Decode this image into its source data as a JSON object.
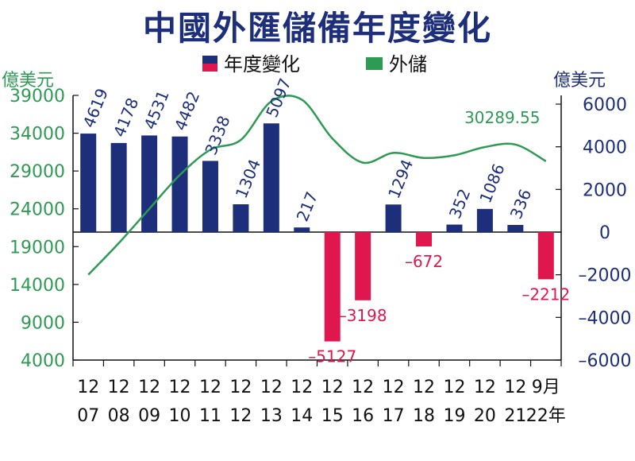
{
  "title": "中國外匯儲備年度變化",
  "chart_data": {
    "type": "bar+line",
    "title": "中國外匯儲備年度變化",
    "legend": [
      "年度變化",
      "外儲"
    ],
    "left_axis": {
      "unit": "億美元",
      "ticks": [
        "39000",
        "34000",
        "29000",
        "24000",
        "19000",
        "14000",
        "9000",
        "4000"
      ],
      "range": [
        4000,
        39000
      ]
    },
    "right_axis": {
      "unit": "億美元",
      "ticks": [
        "6000",
        "4000",
        "2000",
        "0",
        "-2000",
        "-4000",
        "-6000"
      ],
      "range": [
        -6000,
        6000
      ]
    },
    "categories": [
      {
        "top": "12",
        "bottom": "07"
      },
      {
        "top": "12",
        "bottom": "08"
      },
      {
        "top": "12",
        "bottom": "09"
      },
      {
        "top": "12",
        "bottom": "10"
      },
      {
        "top": "12",
        "bottom": "11"
      },
      {
        "top": "12",
        "bottom": "12"
      },
      {
        "top": "12",
        "bottom": "13"
      },
      {
        "top": "12",
        "bottom": "14"
      },
      {
        "top": "12",
        "bottom": "15"
      },
      {
        "top": "12",
        "bottom": "16"
      },
      {
        "top": "12",
        "bottom": "17"
      },
      {
        "top": "12",
        "bottom": "18"
      },
      {
        "top": "12",
        "bottom": "19"
      },
      {
        "top": "12",
        "bottom": "20"
      },
      {
        "top": "12",
        "bottom": "21"
      },
      {
        "top": "9月",
        "bottom": "22年"
      }
    ],
    "series": [
      {
        "name": "年度變化",
        "axis": "right",
        "values": [
          4619,
          4178,
          4531,
          4482,
          3338,
          1304,
          5097,
          217,
          -5127,
          -3198,
          1294,
          -672,
          352,
          1086,
          336,
          -2212
        ],
        "labels": [
          "4619",
          "4178",
          "4531",
          "4482",
          "3338",
          "1304",
          "5097",
          "217",
          "–5127",
          "–3198",
          "1294",
          "–672",
          "352",
          "1086",
          "336",
          "–2212"
        ],
        "color_positive": "#1d2f7a",
        "color_negative": "#e0174e"
      },
      {
        "name": "外儲",
        "axis": "left",
        "values": [
          15282,
          19460,
          23992,
          28473,
          31811,
          33116,
          38213,
          38430,
          33304,
          30105,
          31399,
          30727,
          31079,
          32165,
          32502,
          30290
        ],
        "end_label": "30289.55",
        "color": "#2e9a54"
      }
    ]
  }
}
